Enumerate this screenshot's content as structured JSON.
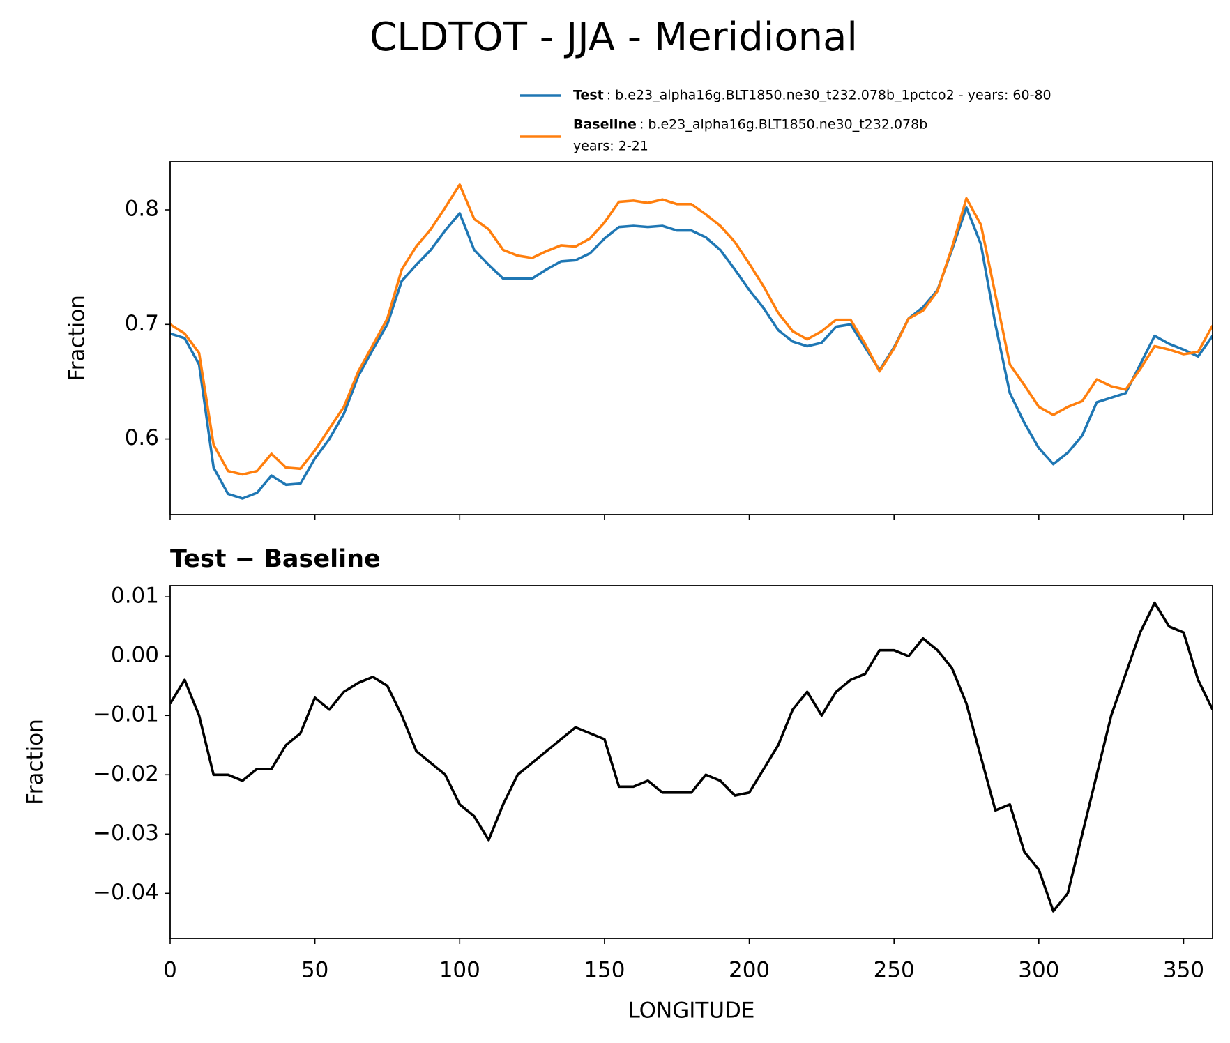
{
  "title": "CLDTOT - JJA - Meridional",
  "chart_data": [
    {
      "type": "line",
      "ylabel": "Fraction",
      "x": [
        0,
        5,
        10,
        15,
        20,
        25,
        30,
        35,
        40,
        45,
        50,
        55,
        60,
        65,
        70,
        75,
        80,
        85,
        90,
        95,
        100,
        105,
        110,
        115,
        120,
        125,
        130,
        135,
        140,
        145,
        150,
        155,
        160,
        165,
        170,
        175,
        180,
        185,
        190,
        195,
        200,
        205,
        210,
        215,
        220,
        225,
        230,
        235,
        240,
        245,
        250,
        255,
        260,
        265,
        270,
        275,
        280,
        285,
        290,
        295,
        300,
        305,
        310,
        315,
        320,
        325,
        330,
        335,
        340,
        345,
        350,
        355,
        360
      ],
      "xlim": [
        0,
        360
      ],
      "ylim": [
        0.534,
        0.842
      ],
      "yticks": [
        0.6,
        0.7,
        0.8
      ],
      "series": [
        {
          "name": "Test",
          "label": ": b.e23_alpha16g.BLT1850.ne30_t232.078b_1pctco2 - years: 60-80",
          "color": "#1f77b4",
          "values": [
            0.692,
            0.688,
            0.665,
            0.575,
            0.552,
            0.548,
            0.553,
            0.568,
            0.56,
            0.561,
            0.583,
            0.6,
            0.622,
            0.655,
            0.678,
            0.7,
            0.738,
            0.752,
            0.765,
            0.782,
            0.797,
            0.765,
            0.752,
            0.74,
            0.74,
            0.74,
            0.748,
            0.755,
            0.756,
            0.762,
            0.775,
            0.785,
            0.786,
            0.785,
            0.786,
            0.782,
            0.782,
            0.776,
            0.765,
            0.748,
            0.73,
            0.714,
            0.695,
            0.685,
            0.681,
            0.684,
            0.698,
            0.7,
            0.68,
            0.66,
            0.68,
            0.705,
            0.715,
            0.73,
            0.765,
            0.802,
            0.77,
            0.7,
            0.64,
            0.614,
            0.592,
            0.578,
            0.588,
            0.603,
            0.632,
            0.636,
            0.64,
            0.665,
            0.69,
            0.683,
            0.678,
            0.672,
            0.69
          ]
        },
        {
          "name": "Baseline",
          "label": ": b.e23_alpha16g.BLT1850.ne30_t232.078b",
          "label2": "years: 2-21",
          "color": "#ff7f0e",
          "values": [
            0.7,
            0.692,
            0.675,
            0.595,
            0.572,
            0.569,
            0.572,
            0.587,
            0.575,
            0.574,
            0.59,
            0.609,
            0.628,
            0.659,
            0.682,
            0.705,
            0.748,
            0.768,
            0.783,
            0.802,
            0.822,
            0.792,
            0.783,
            0.765,
            0.76,
            0.758,
            0.764,
            0.769,
            0.768,
            0.775,
            0.789,
            0.807,
            0.808,
            0.806,
            0.809,
            0.805,
            0.805,
            0.796,
            0.786,
            0.772,
            0.753,
            0.733,
            0.71,
            0.694,
            0.687,
            0.694,
            0.704,
            0.704,
            0.683,
            0.659,
            0.679,
            0.705,
            0.712,
            0.729,
            0.767,
            0.81,
            0.787,
            0.726,
            0.665,
            0.647,
            0.628,
            0.621,
            0.628,
            0.633,
            0.652,
            0.646,
            0.643,
            0.661,
            0.681,
            0.678,
            0.674,
            0.676,
            0.699
          ]
        }
      ]
    },
    {
      "type": "line",
      "title": "Test − Baseline",
      "xlabel": "LONGITUDE",
      "ylabel": "Fraction",
      "x": [
        0,
        5,
        10,
        15,
        20,
        25,
        30,
        35,
        40,
        45,
        50,
        55,
        60,
        65,
        70,
        75,
        80,
        85,
        90,
        95,
        100,
        105,
        110,
        115,
        120,
        125,
        130,
        135,
        140,
        145,
        150,
        155,
        160,
        165,
        170,
        175,
        180,
        185,
        190,
        195,
        200,
        205,
        210,
        215,
        220,
        225,
        230,
        235,
        240,
        245,
        250,
        255,
        260,
        265,
        270,
        275,
        280,
        285,
        290,
        295,
        300,
        305,
        310,
        315,
        320,
        325,
        330,
        335,
        340,
        345,
        350,
        355,
        360
      ],
      "xlim": [
        0,
        360
      ],
      "xticks": [
        0,
        50,
        100,
        150,
        200,
        250,
        300,
        350
      ],
      "ylim": [
        -0.0476,
        0.0119
      ],
      "yticks": [
        0.01,
        {
          "value": 0,
          "label": "0.00"
        },
        {
          "value": -0.01,
          "label": "−0.01"
        },
        {
          "value": -0.02,
          "label": "−0.02"
        },
        {
          "value": -0.03,
          "label": "−0.03"
        },
        {
          "value": -0.04,
          "label": "−0.04"
        }
      ],
      "series": [
        {
          "color": "#000000",
          "values": [
            -0.008,
            -0.004,
            -0.01,
            -0.02,
            -0.02,
            -0.021,
            -0.019,
            -0.019,
            -0.015,
            -0.013,
            -0.007,
            -0.009,
            -0.006,
            -0.0045,
            -0.0035,
            -0.005,
            -0.01,
            -0.016,
            -0.018,
            -0.02,
            -0.025,
            -0.027,
            -0.031,
            -0.025,
            -0.02,
            -0.018,
            -0.016,
            -0.014,
            -0.012,
            -0.013,
            -0.014,
            -0.022,
            -0.022,
            -0.021,
            -0.023,
            -0.023,
            -0.023,
            -0.02,
            -0.021,
            -0.0235,
            -0.023,
            -0.019,
            -0.015,
            -0.009,
            -0.006,
            -0.01,
            -0.006,
            -0.004,
            -0.003,
            0.001,
            0.001,
            0,
            0.003,
            0.001,
            -0.002,
            -0.008,
            -0.017,
            -0.026,
            -0.025,
            -0.033,
            -0.036,
            -0.043,
            -0.04,
            -0.03,
            -0.02,
            -0.01,
            -0.003,
            0.004,
            0.009,
            0.005,
            0.004,
            -0.004,
            -0.009
          ]
        }
      ]
    }
  ]
}
